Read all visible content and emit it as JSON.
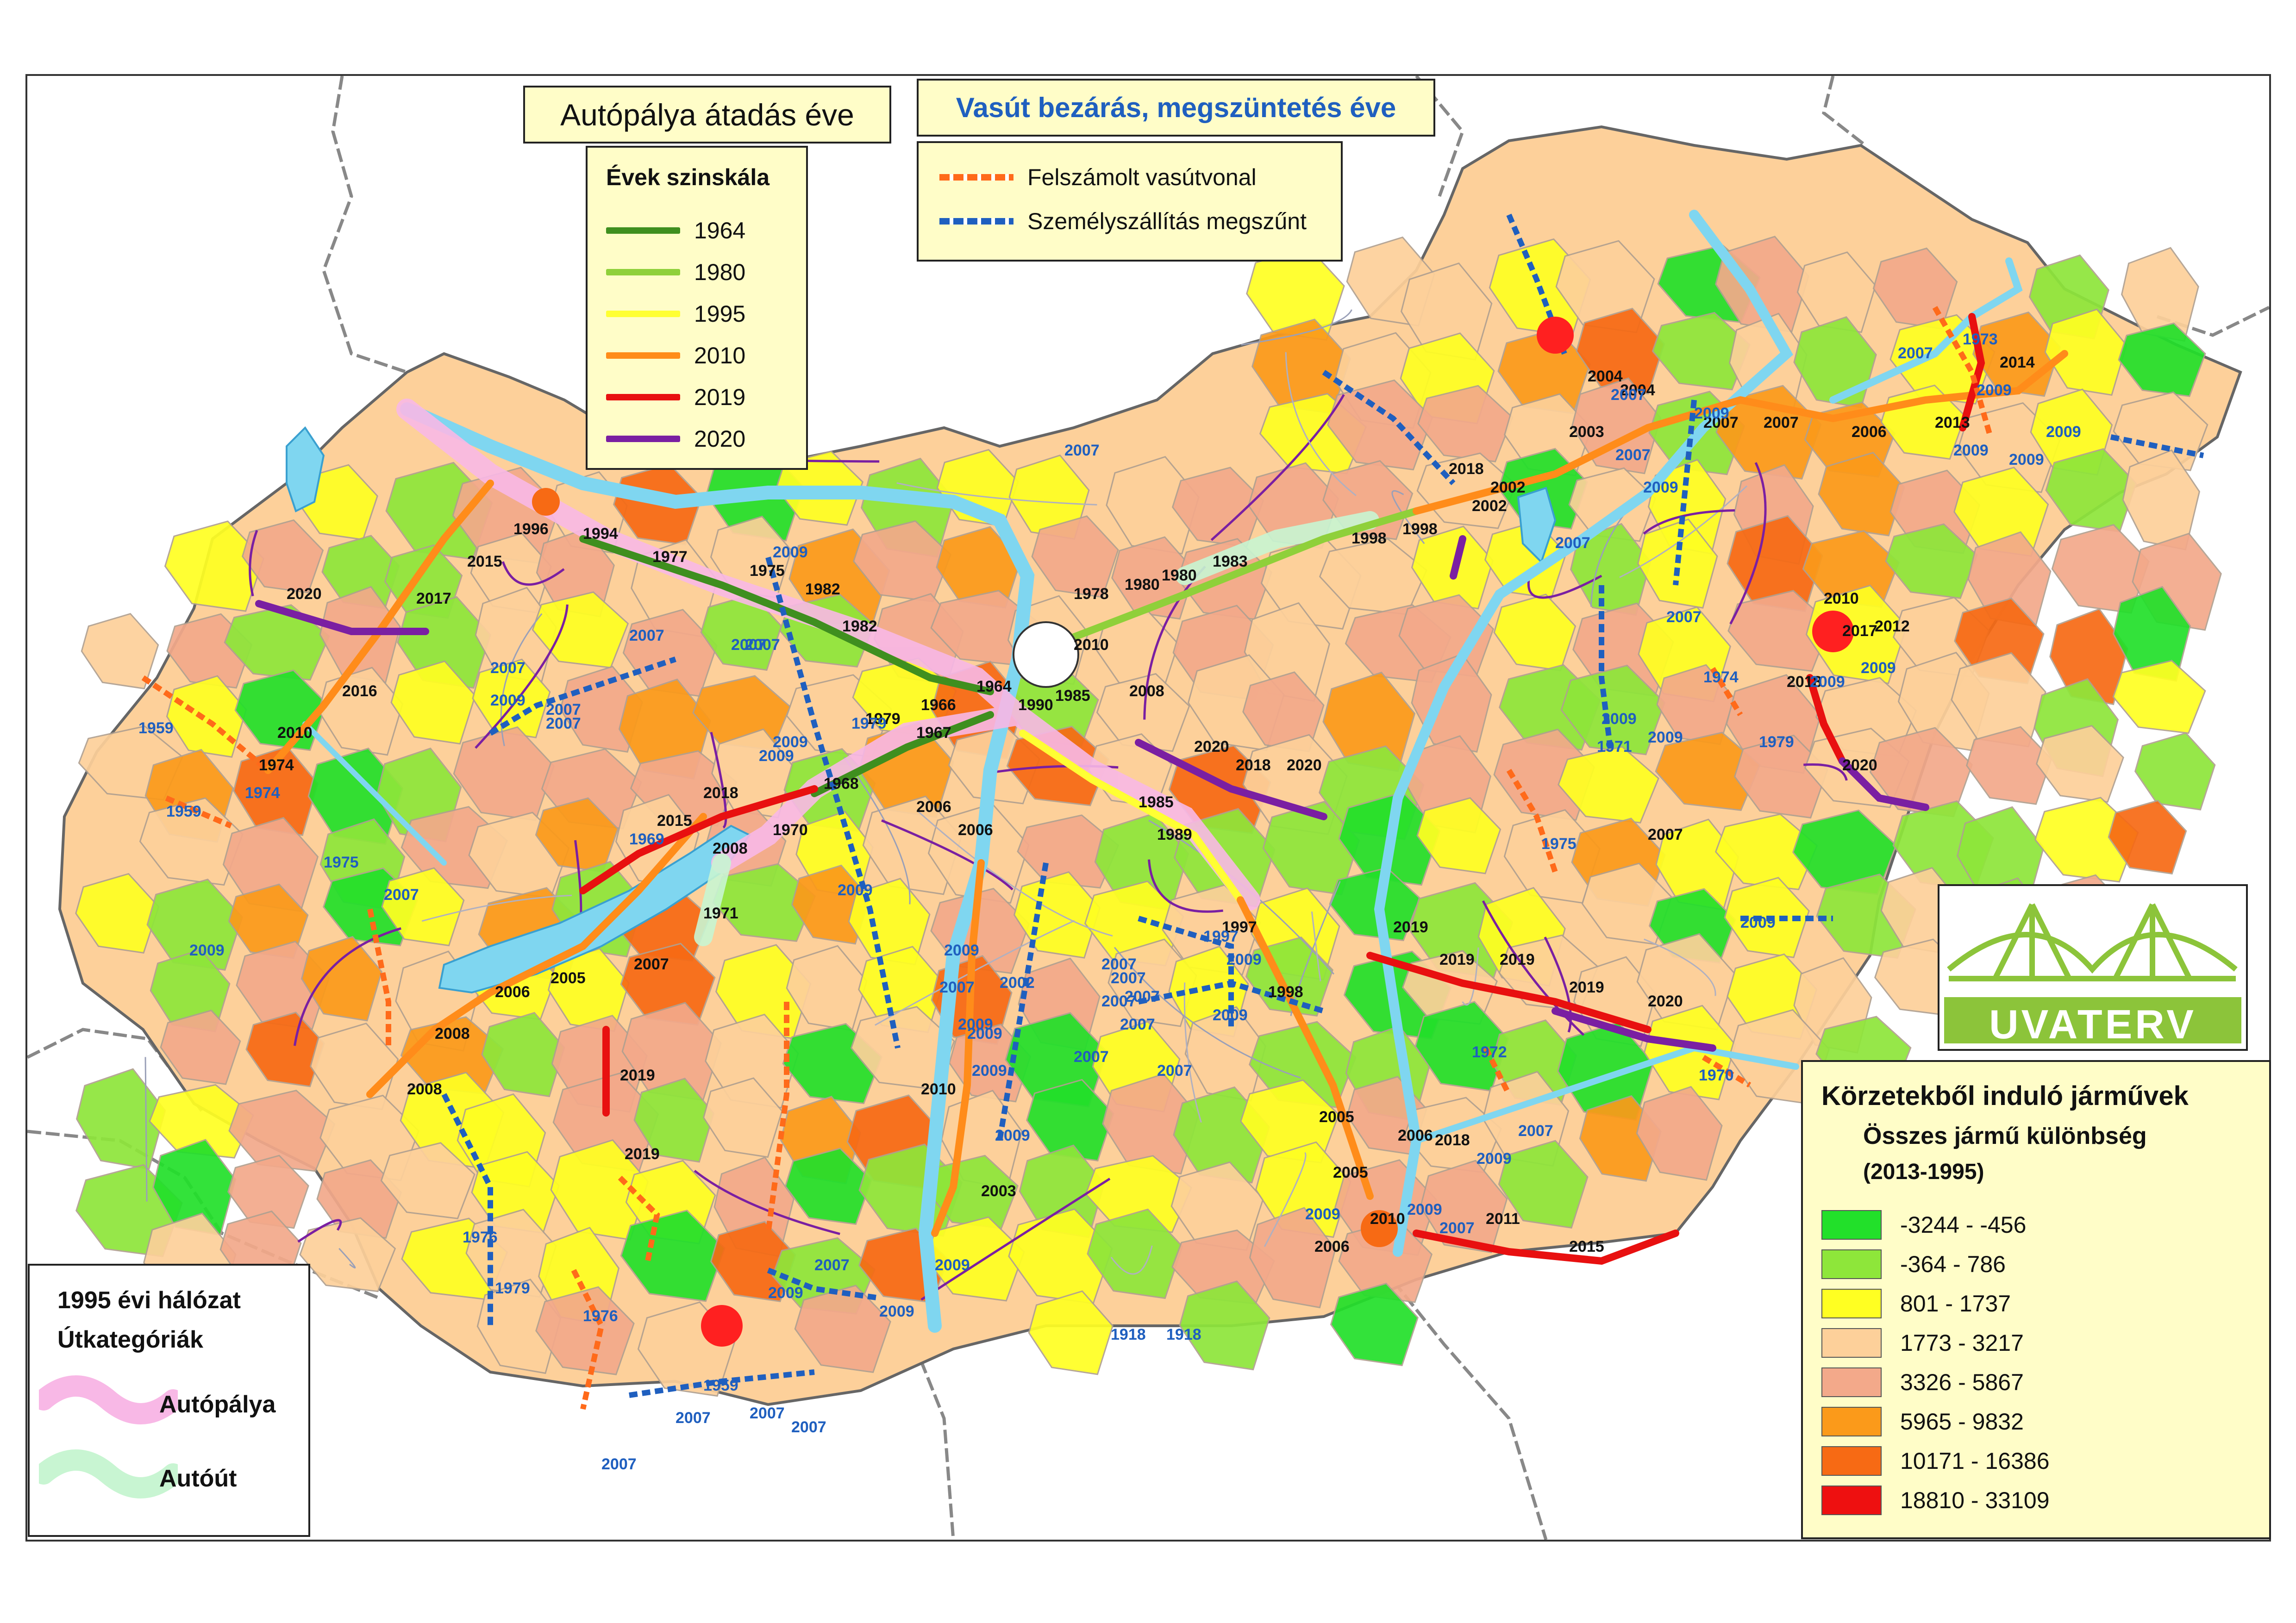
{
  "titles": {
    "motorway": "Autópálya átadás éve",
    "railway": "Vasút bezárás, megszüntetés éve"
  },
  "year_legend": {
    "heading": "Évek szinskála",
    "items": [
      {
        "label": "1964",
        "color": "#3f8f1f"
      },
      {
        "label": "1980",
        "color": "#8fd03a"
      },
      {
        "label": "1995",
        "color": "#ffff33"
      },
      {
        "label": "2010",
        "color": "#ff8c1a"
      },
      {
        "label": "2019",
        "color": "#e81010"
      },
      {
        "label": "2020",
        "color": "#7a1fa2"
      }
    ]
  },
  "rail_legend": {
    "items": [
      {
        "label": "Felszámolt vasútvonal",
        "color": "#ff6a1a"
      },
      {
        "label": "Személyszállítás megszűnt",
        "color": "#1f5fbf"
      }
    ]
  },
  "network_legend": {
    "heading": "1995 évi hálózat",
    "subheading": "Útkategóriák",
    "items": [
      {
        "label": "Autópálya",
        "color": "#f8b8e6"
      },
      {
        "label": "Autóút",
        "color": "#c8f5d2"
      }
    ]
  },
  "vehicle_legend": {
    "heading": "Körzetekből induló járművek",
    "subheading": "Összes jármű különbség",
    "period": "(2013-1995)",
    "classes": [
      {
        "label": "-3244 - -456",
        "color": "#22e02a"
      },
      {
        "label": "-364 - 786",
        "color": "#8ee63a"
      },
      {
        "label": "801 - 1737",
        "color": "#ffff22"
      },
      {
        "label": "1773 - 3217",
        "color": "#fdd09a"
      },
      {
        "label": "3326 - 5867",
        "color": "#f3a98a"
      },
      {
        "label": "5965 - 9832",
        "color": "#fb9a1a"
      },
      {
        "label": "10171 - 16386",
        "color": "#f76a14"
      },
      {
        "label": "18810 - 33109",
        "color": "#ee1010"
      }
    ]
  },
  "logo_text": "UVATERV",
  "motorway_year_labels": [
    "1964",
    "1977",
    "1975",
    "1982",
    "1982",
    "1996",
    "1994",
    "2015",
    "2017",
    "2020",
    "2016",
    "2010",
    "1974",
    "2018",
    "2015",
    "1968",
    "1970",
    "2008",
    "1971",
    "1967",
    "1966",
    "1979",
    "2006",
    "2006",
    "2005",
    "2006",
    "2008",
    "2008",
    "2007",
    "1978",
    "1980",
    "1980",
    "1983",
    "1998",
    "1998",
    "2002",
    "2018",
    "2002",
    "2003",
    "2004",
    "2004",
    "2007",
    "2007",
    "2006",
    "2013",
    "2014",
    "1990",
    "1985",
    "2008",
    "2010",
    "2020",
    "2018",
    "2020",
    "1985",
    "1989",
    "1997",
    "1998",
    "2019",
    "2019",
    "2019",
    "2019",
    "2020",
    "2005",
    "2005",
    "2006",
    "2010",
    "2018",
    "2011",
    "2015",
    "2003",
    "2010",
    "2019",
    "2019",
    "2006",
    "2017",
    "2020",
    "2018",
    "2010",
    "2012",
    "2007"
  ],
  "rail_year_labels": [
    "2009",
    "2007",
    "2007",
    "2007",
    "2007",
    "2009",
    "2007",
    "2009",
    "2007",
    "2007",
    "1959",
    "1974",
    "1959",
    "1975",
    "2007",
    "2009",
    "1969",
    "2009",
    "2009",
    "1979",
    "2007",
    "2009",
    "2009",
    "2009",
    "2007",
    "2007",
    "2007",
    "2009",
    "1976",
    "1979",
    "1976",
    "2009",
    "2007",
    "1959",
    "2007",
    "2007",
    "2007",
    "2007",
    "2009",
    "2009",
    "1918",
    "1918",
    "2002",
    "2009",
    "2007",
    "2007",
    "2009",
    "1997",
    "2009",
    "2007",
    "2007",
    "2009",
    "2009",
    "2009",
    "2007",
    "2007",
    "2007",
    "2009",
    "2009",
    "2009",
    "2009",
    "1973",
    "2009",
    "2007",
    "2009",
    "1974",
    "1971",
    "1975",
    "2009",
    "1972",
    "1970",
    "2009",
    "2009",
    "2007",
    "1979",
    "2009",
    "2009",
    "2007",
    "2007"
  ]
}
